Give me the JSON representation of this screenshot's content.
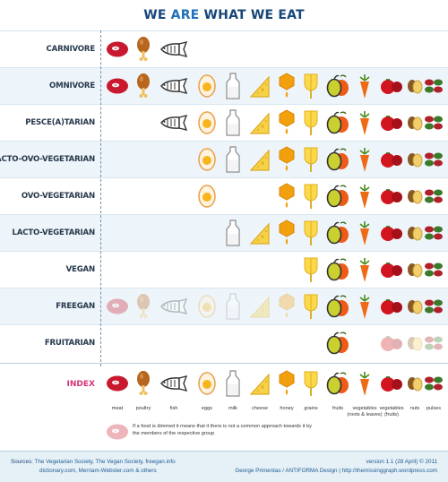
{
  "title": {
    "part1": "WE ",
    "part2": "ARE",
    "part3": " WHAT WE EAT"
  },
  "foods": [
    "meat",
    "poultry",
    "fish",
    "eggs",
    "milk",
    "cheese",
    "honey",
    "grains",
    "fruits",
    "vegetables (roots & leaves)",
    "vegetables (fruits)",
    "nuts",
    "pulses"
  ],
  "rows": [
    {
      "label": "CARNIVORE",
      "items": [
        [
          "meat",
          1
        ],
        [
          "poultry",
          1
        ],
        [
          "fish",
          1
        ]
      ]
    },
    {
      "label": "OMNIVORE",
      "items": [
        [
          "meat",
          1
        ],
        [
          "poultry",
          1
        ],
        [
          "fish",
          1
        ],
        [
          "eggs",
          1
        ],
        [
          "milk",
          1
        ],
        [
          "cheese",
          1
        ],
        [
          "honey",
          1
        ],
        [
          "grains",
          1
        ],
        [
          "fruits",
          1
        ],
        [
          "vegroots",
          1
        ],
        [
          "vegfruits",
          1
        ],
        [
          "nuts",
          1
        ],
        [
          "pulses",
          1
        ]
      ]
    },
    {
      "label": "PESCE(A)TARIAN",
      "items": [
        [
          "fish",
          1
        ],
        [
          "eggs",
          1
        ],
        [
          "milk",
          1
        ],
        [
          "cheese",
          1
        ],
        [
          "honey",
          1
        ],
        [
          "grains",
          1
        ],
        [
          "fruits",
          1
        ],
        [
          "vegroots",
          1
        ],
        [
          "vegfruits",
          1
        ],
        [
          "nuts",
          1
        ],
        [
          "pulses",
          1
        ]
      ]
    },
    {
      "label": "LACTO-OVO-VEGETARIAN",
      "items": [
        [
          "eggs",
          1
        ],
        [
          "milk",
          1
        ],
        [
          "cheese",
          1
        ],
        [
          "honey",
          1
        ],
        [
          "grains",
          1
        ],
        [
          "fruits",
          1
        ],
        [
          "vegroots",
          1
        ],
        [
          "vegfruits",
          1
        ],
        [
          "nuts",
          1
        ],
        [
          "pulses",
          1
        ]
      ]
    },
    {
      "label": "OVO-VEGETARIAN",
      "items": [
        [
          "eggs",
          1
        ],
        [
          "honey",
          1
        ],
        [
          "grains",
          1
        ],
        [
          "fruits",
          1
        ],
        [
          "vegroots",
          1
        ],
        [
          "vegfruits",
          1
        ],
        [
          "nuts",
          1
        ],
        [
          "pulses",
          1
        ]
      ]
    },
    {
      "label": "LACTO-VEGETARIAN",
      "items": [
        [
          "milk",
          1
        ],
        [
          "cheese",
          1
        ],
        [
          "honey",
          1
        ],
        [
          "grains",
          1
        ],
        [
          "fruits",
          1
        ],
        [
          "vegroots",
          1
        ],
        [
          "vegfruits",
          1
        ],
        [
          "nuts",
          1
        ],
        [
          "pulses",
          1
        ]
      ]
    },
    {
      "label": "VEGAN",
      "items": [
        [
          "grains",
          1
        ],
        [
          "fruits",
          1
        ],
        [
          "vegroots",
          1
        ],
        [
          "vegfruits",
          1
        ],
        [
          "nuts",
          1
        ],
        [
          "pulses",
          1
        ]
      ]
    },
    {
      "label": "FREEGAN",
      "items": [
        [
          "meat",
          0
        ],
        [
          "poultry",
          0
        ],
        [
          "fish",
          0
        ],
        [
          "eggs",
          0
        ],
        [
          "milk",
          0
        ],
        [
          "cheese",
          0
        ],
        [
          "honey",
          0
        ],
        [
          "grains",
          1
        ],
        [
          "fruits",
          1
        ],
        [
          "vegroots",
          1
        ],
        [
          "vegfruits",
          1
        ],
        [
          "nuts",
          1
        ],
        [
          "pulses",
          1
        ]
      ]
    },
    {
      "label": "FRUITARIAN",
      "items": [
        [
          "fruits",
          1
        ],
        [
          "vegfruits",
          0
        ],
        [
          "nuts",
          0
        ],
        [
          "pulses",
          0
        ]
      ]
    }
  ],
  "index": {
    "label": "INDEX",
    "captions": [
      "meat",
      "poultry",
      "fish",
      "eggs",
      "milk",
      "cheese",
      "honey",
      "grains",
      "fruits",
      "vegetables (roots & leaves)",
      "vegetables (fruits)",
      "nuts",
      "pulses"
    ],
    "note": "If a food is dimmed it means that it there is not a common approach towards it by the members of the respective group"
  },
  "footer": {
    "sources_label": "Sources:",
    "sources_line1": "The Vegetarian Society, The Vegan Society, freegan.info",
    "sources_line2": "dictionary.com, Merriam-Webster.com & others",
    "version": "version 1.1 (28 April) © 2011",
    "credit": "George Primentas / ANTIFORMA Design | http://themissinggraph.wordpress.com"
  },
  "colors": {
    "title_dark": "#16467a",
    "title_light": "#1f6fba",
    "index_label": "#d6337a",
    "row_alt": "#eef5fa"
  },
  "icon_names": [
    "meat-icon",
    "poultry-icon",
    "fish-icon",
    "egg-icon",
    "milk-icon",
    "cheese-icon",
    "honey-icon",
    "grains-icon",
    "fruits-icon",
    "vegetables-roots-icon",
    "vegetables-fruits-icon",
    "nuts-icon",
    "pulses-icon"
  ]
}
